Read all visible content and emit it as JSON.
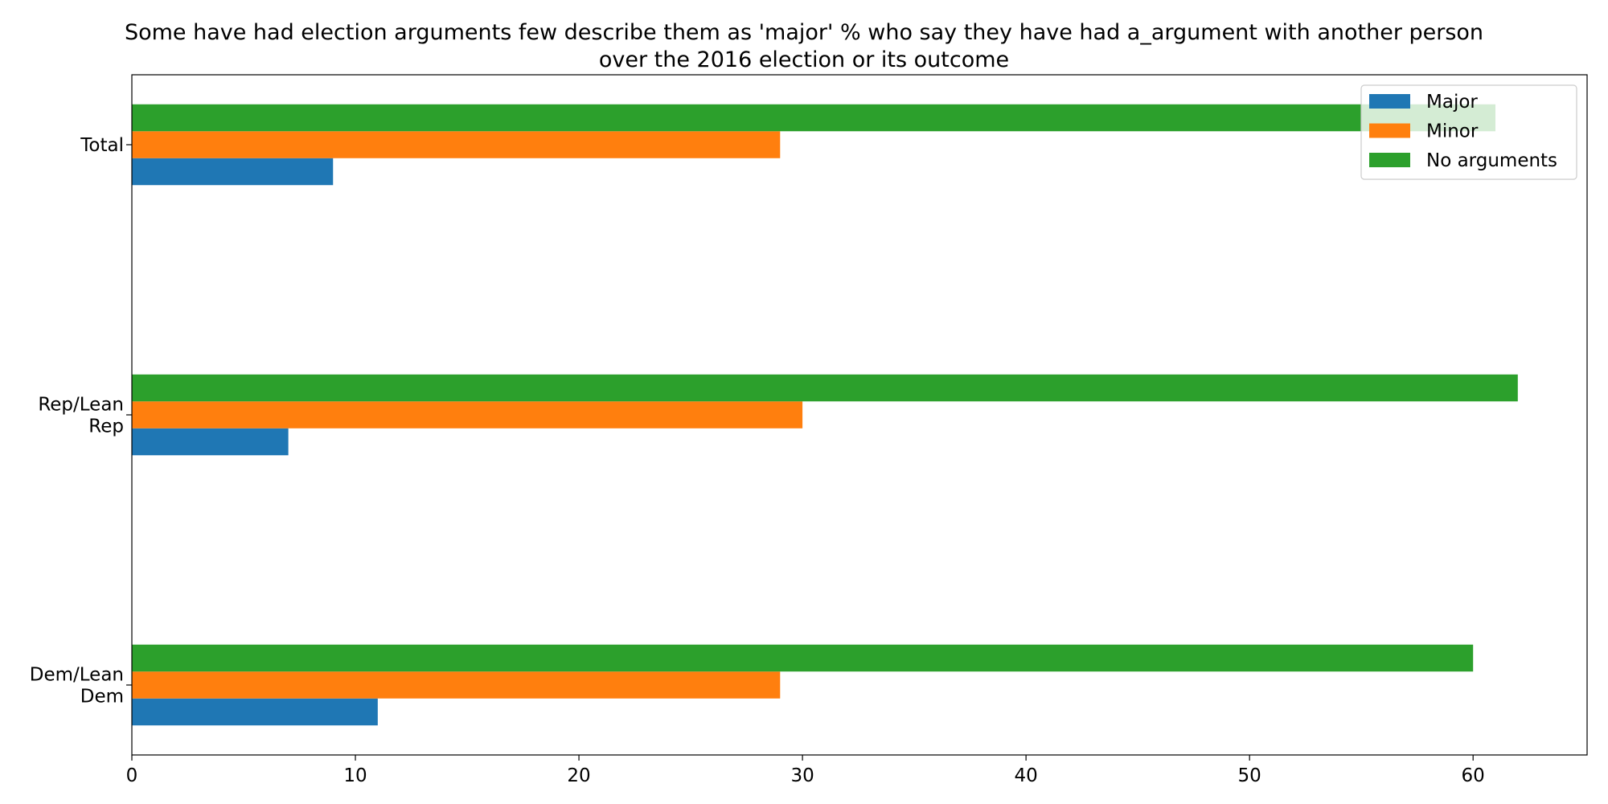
{
  "chart_data": {
    "type": "bar",
    "orientation": "horizontal",
    "title_lines": [
      "Some have had election arguments few describe them as 'major' % who say they have had a_argument with another person",
      "over the 2016 election or its outcome"
    ],
    "xlabel": "",
    "ylabel": "",
    "categories": [
      [
        "Total"
      ],
      [
        "Rep/Lean",
        "Rep"
      ],
      [
        "Dem/Lean",
        "Dem"
      ]
    ],
    "series": [
      {
        "name": "Major",
        "color": "#1f77b4",
        "values": [
          9,
          7,
          11
        ]
      },
      {
        "name": "Minor",
        "color": "#ff7f0e",
        "values": [
          29,
          30,
          29
        ]
      },
      {
        "name": "No arguments",
        "color": "#2ca02c",
        "values": [
          61,
          62,
          60
        ]
      }
    ],
    "xlim": [
      0,
      65.1
    ],
    "xticks": [
      0,
      10,
      20,
      30,
      40,
      50,
      60
    ],
    "grid": false,
    "legend_position": "top-right"
  }
}
